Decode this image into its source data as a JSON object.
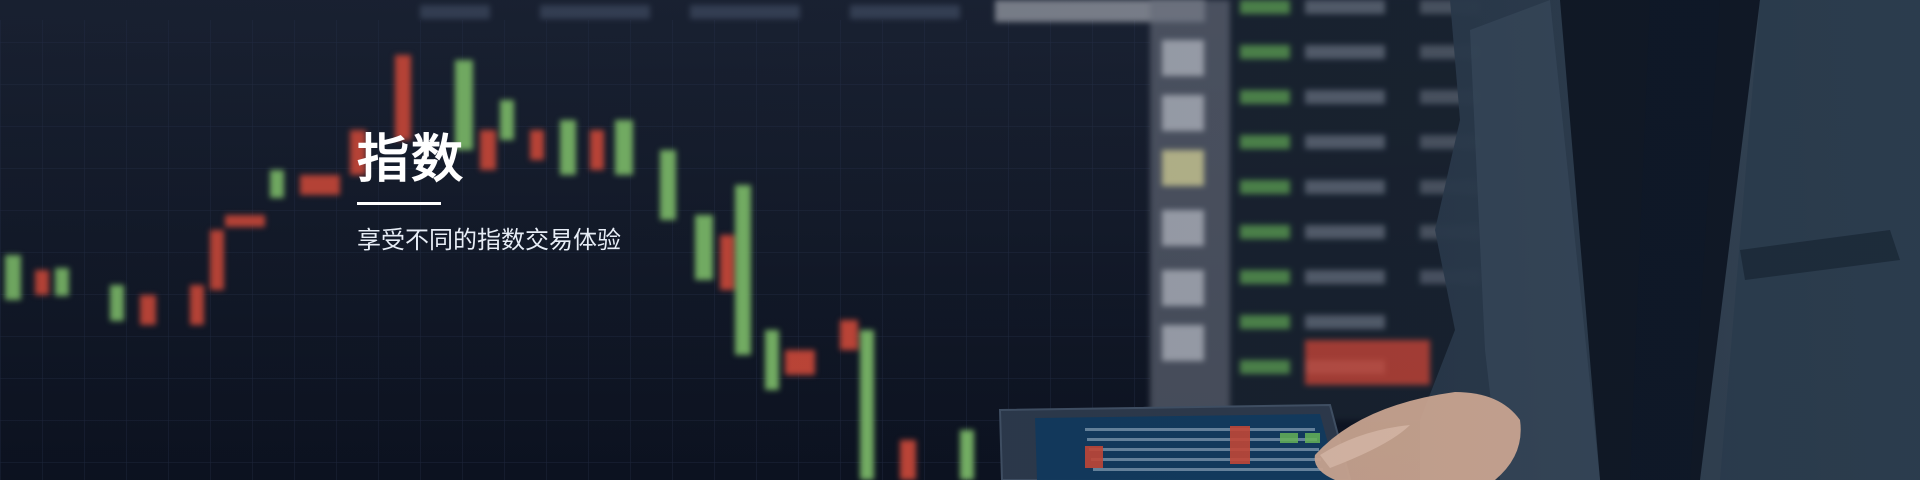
{
  "hero": {
    "title": "指数",
    "subtitle": "享受不同的指数交易体验"
  },
  "colors": {
    "background": "#0f1726",
    "candle_green": "#7fbf6b",
    "candle_red": "#cf4a3a",
    "text": "#ffffff"
  },
  "icons": {
    "underline": "title-underline",
    "background": "trading-background-image"
  }
}
